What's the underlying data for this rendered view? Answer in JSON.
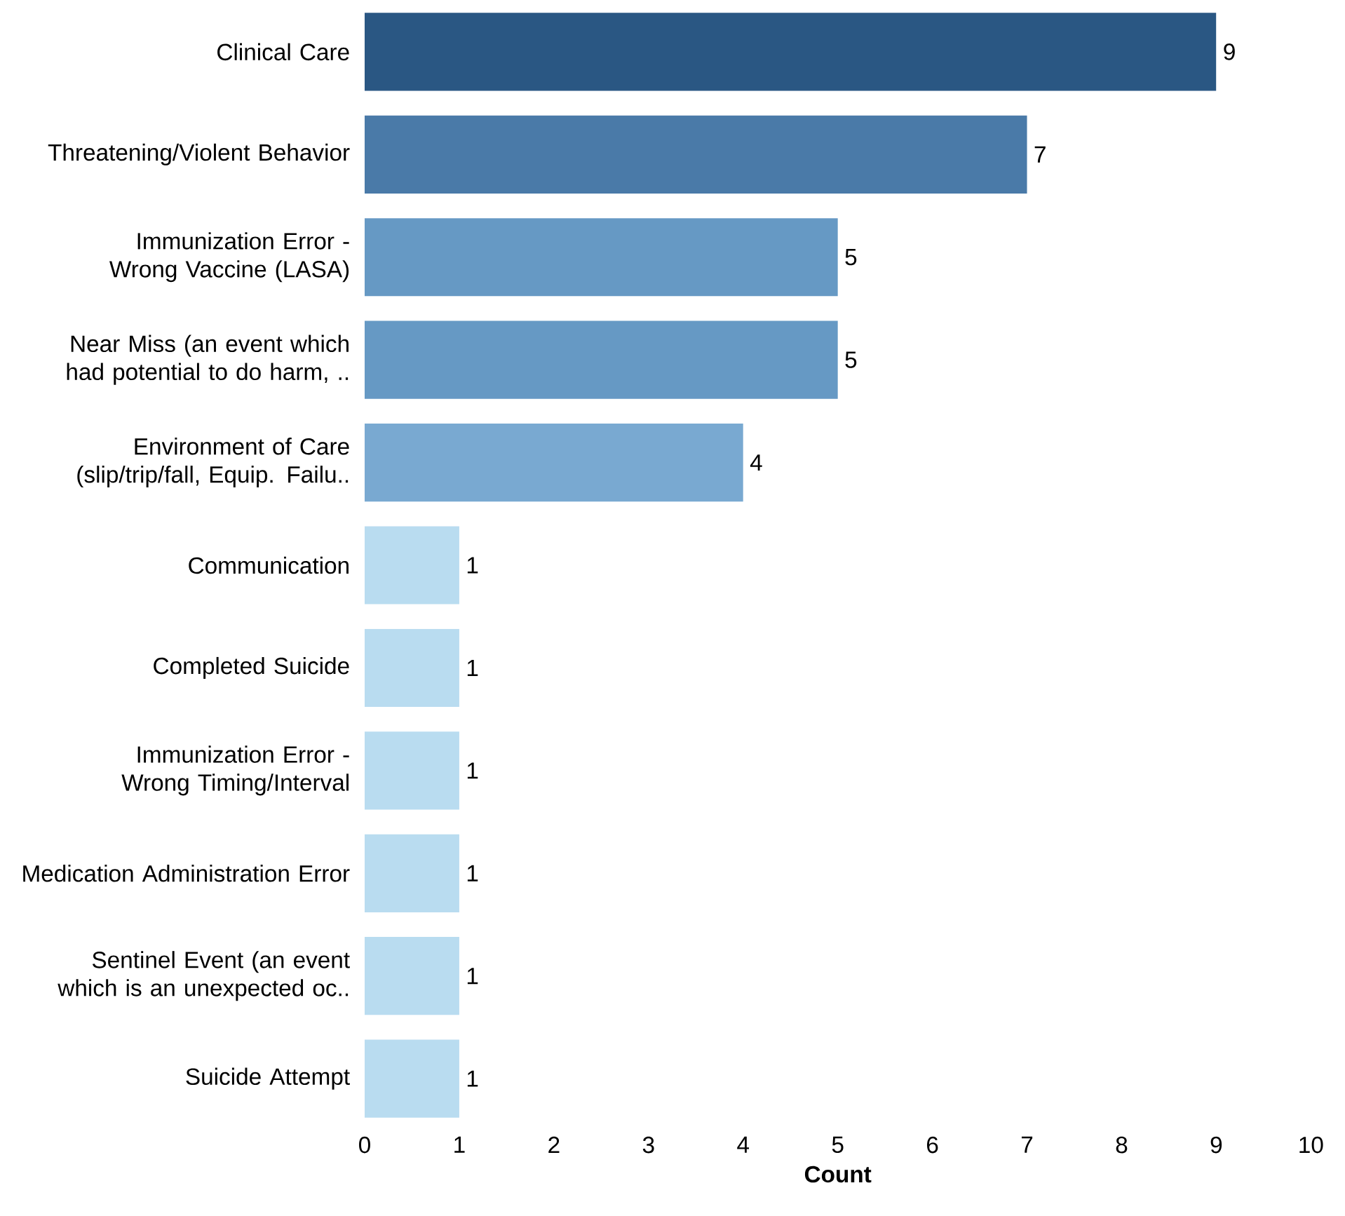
{
  "chart_data": {
    "type": "bar",
    "orientation": "horizontal",
    "xlabel": "Count",
    "categories": [
      "Clinical Care",
      "Threatening/Violent Behavior",
      "Immunization Error - Wrong Vaccine (LASA)",
      "Near Miss (an event which had potential to do harm, ..",
      "Environment of Care (slip/trip/fall, Equip. Failu..",
      "Communication",
      "Completed Suicide",
      "Immunization Error - Wrong Timing/Interval",
      "Medication Administration Error",
      "Sentinel Event (an event which is an unexpected oc..",
      "Suicide Attempt"
    ],
    "values": [
      9,
      7,
      5,
      5,
      4,
      1,
      1,
      1,
      1,
      1,
      1
    ],
    "colors": [
      "#2a5783",
      "#4a7aa8",
      "#6699c4",
      "#6699c4",
      "#79a9d1",
      "#b9dcf0",
      "#b9dcf0",
      "#b9dcf0",
      "#b9dcf0",
      "#b9dcf0",
      "#b9dcf0"
    ],
    "xlim": [
      0,
      10
    ],
    "xticks": [
      0,
      1,
      2,
      3,
      4,
      5,
      6,
      7,
      8,
      9,
      10
    ],
    "data_labels": true
  }
}
